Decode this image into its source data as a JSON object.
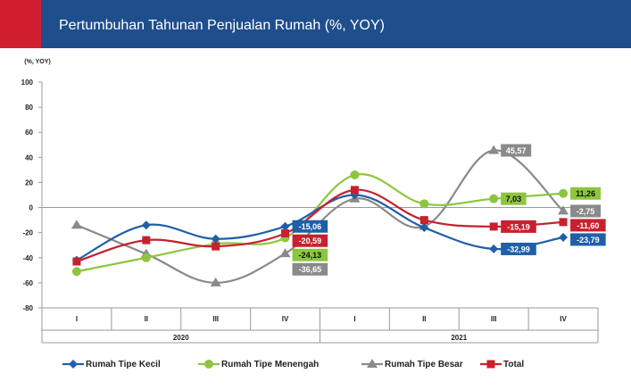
{
  "header": {
    "title": "Pertumbuhan Tahunan Penjualan Rumah (%, YOY)"
  },
  "colors": {
    "header_bg": "#1f4e8c",
    "header_accent": "#d0202f",
    "series_kecil": "#1f5fa8",
    "series_menengah": "#8cc63f",
    "series_besar": "#8a8a8a",
    "series_total": "#c8202f"
  },
  "chart_data": {
    "type": "line",
    "ylabel": "(%, YOY)",
    "ylim": [
      -80,
      100
    ],
    "yticks": [
      100,
      80,
      60,
      40,
      20,
      0,
      -20,
      -40,
      -60,
      -80
    ],
    "categories": [
      "I",
      "II",
      "III",
      "IV",
      "I",
      "II",
      "III",
      "IV"
    ],
    "groups": [
      {
        "label": "2020",
        "span": 4
      },
      {
        "label": "2021",
        "span": 4
      }
    ],
    "grid": false,
    "legend_position": "bottom",
    "series": [
      {
        "name": "Rumah Tipe Kecil",
        "marker": "diamond",
        "color": "#1f5fa8",
        "values": [
          -42,
          -14,
          -25,
          -15.06,
          10,
          -16,
          -32.99,
          -23.79
        ],
        "labels": [
          null,
          null,
          null,
          "-15,06",
          null,
          null,
          "-32,99",
          "-23,79"
        ]
      },
      {
        "name": "Rumah Tipe Menengah",
        "marker": "circle",
        "color": "#8cc63f",
        "values": [
          -51,
          -40,
          -29,
          -24.13,
          26,
          3,
          7.03,
          11.26
        ],
        "labels": [
          null,
          null,
          null,
          "-24,13",
          null,
          null,
          "7,03",
          "11,26"
        ]
      },
      {
        "name": "Rumah Tipe Besar",
        "marker": "triangle",
        "color": "#8a8a8a",
        "values": [
          -14,
          -37,
          -60,
          -36.65,
          7,
          -15,
          45.57,
          -2.75
        ],
        "labels": [
          null,
          null,
          null,
          "-36,65",
          null,
          null,
          "45,57",
          "-2,75"
        ]
      },
      {
        "name": "Total",
        "marker": "square",
        "color": "#c8202f",
        "values": [
          -43,
          -26,
          -31,
          -20.59,
          14,
          -10,
          -15.19,
          -11.6
        ],
        "labels": [
          null,
          null,
          null,
          "-20,59",
          null,
          null,
          "-15,19",
          "-11,60"
        ]
      }
    ]
  }
}
